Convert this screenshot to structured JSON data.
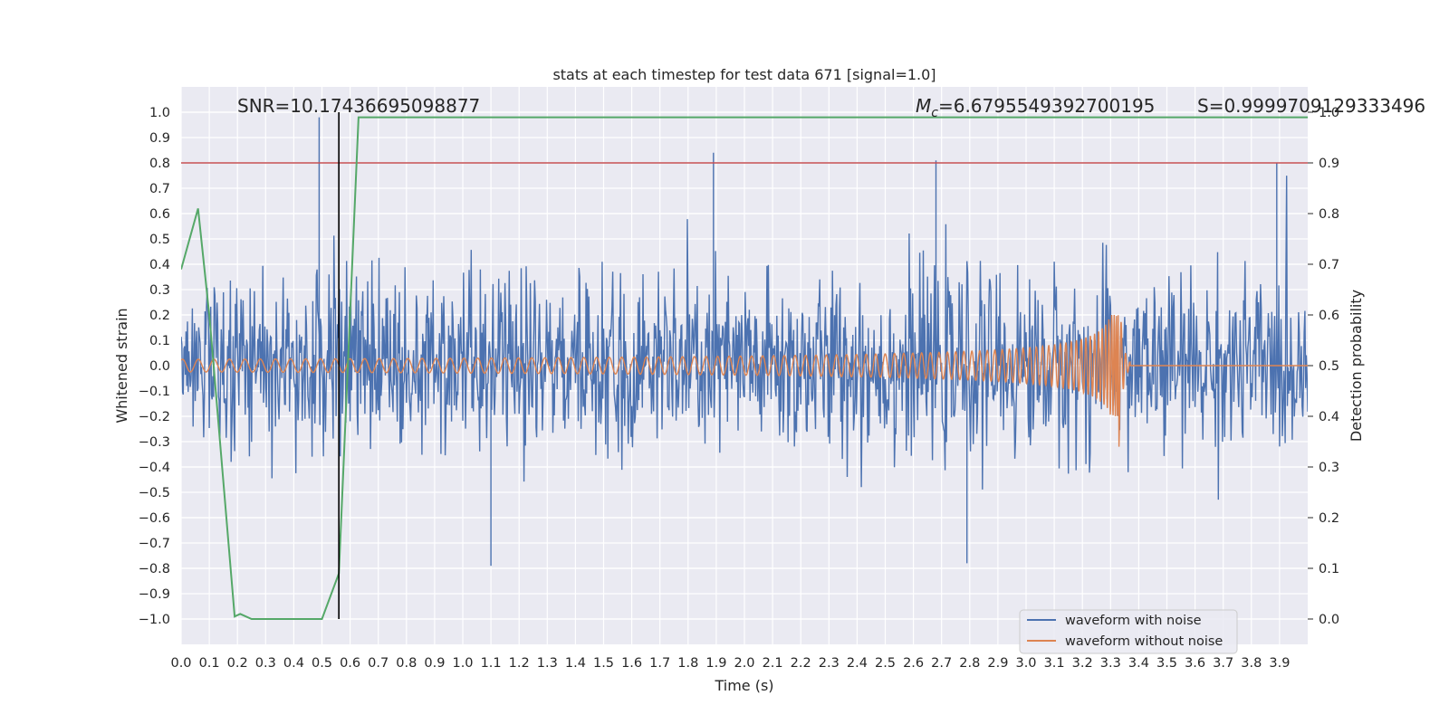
{
  "chart_data": {
    "type": "line",
    "title": "stats at each timestep for test data 671 [signal=1.0]",
    "xlabel": "Time (s)",
    "ylabel": "Whitened strain",
    "y2label": "Detection probability",
    "xlim": [
      0.0,
      4.0
    ],
    "ylim": [
      -1.1,
      1.1
    ],
    "y2lim": [
      -0.05,
      1.05
    ],
    "grid": true,
    "x_ticks": [
      "0.0",
      "0.1",
      "0.2",
      "0.3",
      "0.4",
      "0.5",
      "0.6",
      "0.7",
      "0.8",
      "0.9",
      "1.0",
      "1.1",
      "1.2",
      "1.3",
      "1.4",
      "1.5",
      "1.6",
      "1.7",
      "1.8",
      "1.9",
      "2.0",
      "2.1",
      "2.2",
      "2.3",
      "2.4",
      "2.5",
      "2.6",
      "2.7",
      "2.8",
      "2.9",
      "3.0",
      "3.1",
      "3.2",
      "3.3",
      "3.4",
      "3.5",
      "3.6",
      "3.7",
      "3.8",
      "3.9"
    ],
    "y_ticks": [
      "1.0",
      "0.9",
      "0.8",
      "0.7",
      "0.6",
      "0.5",
      "0.4",
      "0.3",
      "0.2",
      "0.1",
      "0.0",
      "−0.1",
      "−0.2",
      "−0.3",
      "−0.4",
      "−0.5",
      "−0.6",
      "−0.7",
      "−0.8",
      "−0.9",
      "−1.0"
    ],
    "y2_ticks": [
      "1.0",
      "0.9",
      "0.8",
      "0.7",
      "0.6",
      "0.5",
      "0.4",
      "0.3",
      "0.2",
      "0.1",
      "0.0"
    ],
    "annotations": {
      "snr": "SNR=10.17436695098877",
      "mc_symbol": "M",
      "mc_sub": "c",
      "mc_value": "=6.6795549392700195",
      "s": "S=0.9999709129333496"
    },
    "legend_position": "lower-right",
    "colors": {
      "noisy": "#4c72b0",
      "clean": "#dd8452",
      "probability": "#55a868",
      "threshold": "#c44e52",
      "marker": "#000000",
      "background": "#eaeaf2"
    },
    "threshold_y2": 0.9,
    "marker_x": 0.56,
    "merger_time": 3.33,
    "series": [
      {
        "name": "waveform with noise",
        "axis": "left",
        "description_peaks": [
          [
            0.49,
            0.98
          ],
          [
            1.89,
            0.84
          ],
          [
            2.68,
            0.81
          ],
          [
            3.89,
            0.8
          ],
          [
            1.1,
            -0.79
          ],
          [
            2.79,
            -0.78
          ]
        ],
        "amplitude_typical": 0.35
      },
      {
        "name": "waveform without noise",
        "axis": "left",
        "amplitude_start": 0.025,
        "amplitude_peak": 0.2,
        "amplitude_min": -0.32
      },
      {
        "axis": "right",
        "x": [
          0.0,
          0.06,
          0.1,
          0.12,
          0.19,
          0.21,
          0.25,
          0.3,
          0.4,
          0.5,
          0.56,
          0.63,
          1.0,
          2.0,
          3.0,
          4.0
        ],
        "y": [
          0.69,
          0.81,
          0.6,
          0.47,
          0.005,
          0.01,
          0.0,
          0.0,
          0.0,
          0.0,
          0.09,
          0.99,
          0.99,
          0.99,
          0.99,
          0.99
        ]
      }
    ]
  }
}
